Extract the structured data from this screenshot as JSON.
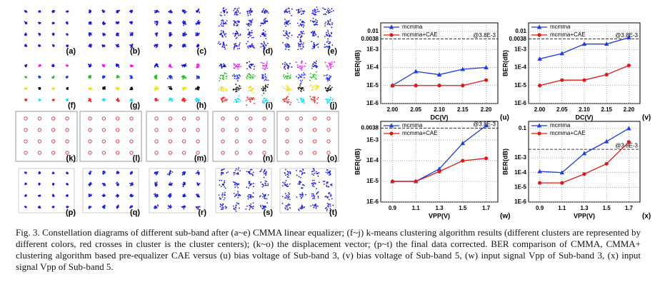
{
  "panels": [
    "(a)",
    "(b)",
    "(c)",
    "(d)",
    "(e)",
    "(f)",
    "(g)",
    "(h)",
    "(i)",
    "(j)",
    "(k)",
    "(l)",
    "(m)",
    "(n)",
    "(o)",
    "(p)",
    "(q)",
    "(r)",
    "(s)",
    "(t)"
  ],
  "charts": [
    {
      "type": "line",
      "panel_label": "(u)",
      "xlabel": "DC(V)",
      "ylabel": "BER(dB)",
      "log_y": true,
      "grid": true,
      "legend": "upper left",
      "x": [
        2.0,
        2.05,
        2.1,
        2.15,
        2.2
      ],
      "xlim": [
        1.975,
        2.225
      ],
      "xticks": [
        {
          "value": 2.0,
          "label": "2.00"
        },
        2.05,
        {
          "value": 2.1,
          "label": "2.10"
        },
        2.15,
        {
          "value": 2.2,
          "label": "2.20"
        }
      ],
      "ylim": [
        1e-06,
        0.03
      ],
      "yticks": [
        0.01,
        0.0038,
        {
          "value": 0.001,
          "label": "1E-3"
        },
        {
          "value": 0.0001,
          "label": "1E-4"
        },
        {
          "value": 1e-05,
          "label": "1E-5"
        },
        {
          "value": 1e-06,
          "label": "1E-6"
        }
      ],
      "threshold": 0.0038,
      "threshold_label": "@3.8E-3",
      "series": [
        {
          "name": "mcmma",
          "color": "#1a3ce0",
          "marker": "triangle",
          "values": [
            1e-05,
            6e-05,
            4e-05,
            8e-05,
            0.0001
          ]
        },
        {
          "name": "mcmma+CAE",
          "color": "#e01818",
          "marker": "circle",
          "values": [
            1e-05,
            1e-05,
            1e-05,
            1e-05,
            2e-05
          ]
        }
      ]
    },
    {
      "type": "line",
      "panel_label": "(v)",
      "xlabel": "DC(V)",
      "ylabel": "BER(dB)",
      "log_y": true,
      "grid": true,
      "legend": "upper left",
      "x": [
        2.0,
        2.05,
        2.1,
        2.15,
        2.2
      ],
      "xlim": [
        1.975,
        2.225
      ],
      "xticks": [
        {
          "value": 2.0,
          "label": "2.00"
        },
        2.05,
        {
          "value": 2.1,
          "label": "2.10"
        },
        2.15,
        {
          "value": 2.2,
          "label": "2.20"
        }
      ],
      "ylim": [
        1e-06,
        0.03
      ],
      "yticks": [
        0.01,
        0.0038,
        {
          "value": 0.001,
          "label": "1E-3"
        },
        {
          "value": 0.0001,
          "label": "1E-4"
        },
        {
          "value": 1e-05,
          "label": "1E-5"
        },
        {
          "value": 1e-06,
          "label": "1E-6"
        }
      ],
      "threshold": 0.0038,
      "threshold_label": "@3.8E-3",
      "series": [
        {
          "name": "mcmma",
          "color": "#1a3ce0",
          "marker": "triangle",
          "values": [
            0.0003,
            0.0006,
            0.002,
            0.002,
            0.0045
          ]
        },
        {
          "name": "mcmma+CAE",
          "color": "#e01818",
          "marker": "circle",
          "values": [
            1e-05,
            2e-05,
            2e-05,
            4e-05,
            0.00013
          ]
        }
      ]
    },
    {
      "type": "line",
      "panel_label": "(w)",
      "xlabel": "VPP(V)",
      "ylabel": "BER(dB)",
      "log_y": true,
      "grid": true,
      "legend": "upper left",
      "x": [
        0.9,
        1.1,
        1.3,
        1.5,
        1.7
      ],
      "xlim": [
        0.8,
        1.8
      ],
      "xticks": [
        0.9,
        1.1,
        1.3,
        1.5,
        1.7
      ],
      "ylim": [
        1e-06,
        0.008
      ],
      "yticks": [
        0.0038,
        {
          "value": 0.001,
          "label": "1E-3"
        },
        {
          "value": 0.0001,
          "label": "1E-4"
        },
        {
          "value": 1e-05,
          "label": "1E-5"
        },
        {
          "value": 1e-06,
          "label": "1E-6"
        }
      ],
      "threshold": 0.0038,
      "threshold_label": "@3.8E-3",
      "series": [
        {
          "name": "mcmma",
          "color": "#1a3ce0",
          "marker": "triangle",
          "values": [
            1e-05,
            1e-05,
            4e-05,
            0.0007,
            0.005
          ]
        },
        {
          "name": "mcmma+CAE",
          "color": "#e01818",
          "marker": "circle",
          "values": [
            1e-05,
            1e-05,
            3e-05,
            0.0001,
            0.00013
          ]
        }
      ]
    },
    {
      "type": "line",
      "panel_label": "(x)",
      "xlabel": "VPP(V)",
      "ylabel": "BER(dB)",
      "log_y": true,
      "grid": true,
      "legend": "upper left",
      "x": [
        0.9,
        1.1,
        1.3,
        1.5,
        1.7
      ],
      "xlim": [
        0.8,
        1.8
      ],
      "xticks": [
        0.9,
        1.1,
        1.3,
        1.5,
        1.7
      ],
      "ylim": [
        1e-06,
        0.3
      ],
      "yticks": [
        0.1,
        {
          "value": 0.001,
          "label": "1E-3"
        },
        {
          "value": 0.0001,
          "label": "1E-4"
        },
        {
          "value": 1e-05,
          "label": "1E-5"
        },
        {
          "value": 1e-06,
          "label": "1E-6"
        }
      ],
      "threshold": 0.0038,
      "threshold_label": "@3.8E-3",
      "series": [
        {
          "name": "mcmma",
          "color": "#1a3ce0",
          "marker": "triangle",
          "values": [
            0.00012,
            0.0001,
            0.002,
            0.013,
            0.1
          ]
        },
        {
          "name": "mcmma+CAE",
          "color": "#e01818",
          "marker": "circle",
          "values": [
            2e-05,
            2e-05,
            8e-05,
            0.0004,
            0.012
          ]
        }
      ]
    }
  ],
  "caption": "Fig. 3. Constellation diagrams of different sub-band after (a~e) CMMA linear equalizer; (f~j) k-means clustering algorithm results (different clusters are represented by different colors, red crosses in cluster is the cluster centers); (k~o) the displacement vector; (p~t) the final data corrected. BER comparison of CMMA, CMMA+ clustering algorithm based pre-equalizer CAE versus (u) bias voltage of Sub-band 3, (v) bias voltage of Sub-band 5, (w) input signal Vpp of Sub-band 3, (x) input signal Vpp of Sub-band 5."
}
